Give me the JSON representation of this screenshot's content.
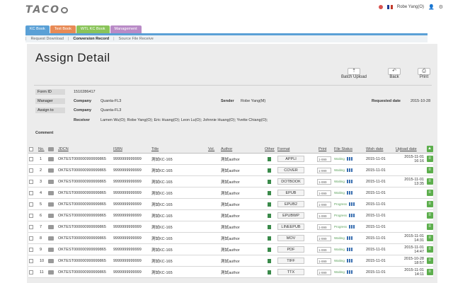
{
  "header": {
    "logo": "TACO",
    "user": "Robe Yang(O)"
  },
  "tabs": [
    "KC Book",
    "Text Book",
    "WTL KC Book",
    "Management"
  ],
  "subnav": [
    "Request Download",
    "Conversion Record",
    "Source File Receive"
  ],
  "page_title": "Assign Detail",
  "toolbar": {
    "batch_upload": "Batch Upload",
    "back": "Back",
    "print": "Print"
  },
  "form": {
    "form_id_label": "Form ID",
    "form_id": "1510286417",
    "manager_label": "Manager",
    "manager_company_label": "Company",
    "manager_company": "Quanta-FL3",
    "assign_label": "Assign to",
    "assign_company_label": "Company",
    "assign_company": "Quanta-FL3",
    "sender_label": "Sender",
    "sender": "Robe Yang(M)",
    "requested_label": "Requested date",
    "requested_date": "2015-10-28",
    "receiver_label": "Receiver",
    "receiver": "Lamen Wu(O); Robe Yang(O); Eric Huang(O); Leon Lu(O); Johnnie Huang(O); Yvette Chiang(O);",
    "comment_label": "Comment"
  },
  "columns": [
    "No.",
    "JDCN",
    "ISBN",
    "Title",
    "Vol.",
    "Author",
    "Other",
    "Format",
    "Print",
    "File Status",
    "Wish date",
    "Upload date"
  ],
  "rows": [
    {
      "no": "1",
      "jdcn": "OKTEST000000999999865",
      "isbn": "9999999999999",
      "title": "測試KC-165",
      "author": "測試author",
      "format": "APPLI",
      "print": "1-999",
      "status": "Waiting",
      "wish": "2015-11-01",
      "upload": "2015-11-01 16:16"
    },
    {
      "no": "2",
      "jdcn": "OKTEST000000999999865",
      "isbn": "9999999999999",
      "title": "測試KC-165",
      "author": "測試author",
      "format": "COVER",
      "print": "1-999",
      "status": "Waiting",
      "wish": "2015-11-01",
      "upload": ""
    },
    {
      "no": "3",
      "jdcn": "OKTEST000000999999865",
      "isbn": "9999999999999",
      "title": "測試KC-165",
      "author": "測試author",
      "format": "DOTBOOK",
      "print": "1-999",
      "status": "Waiting",
      "wish": "2015-11-01",
      "upload": "2015-11-01 13:35"
    },
    {
      "no": "4",
      "jdcn": "OKTEST000000999999865",
      "isbn": "9999999999999",
      "title": "測試KC-165",
      "author": "測試author",
      "format": "EPUB",
      "print": "1-999",
      "status": "Waiting",
      "wish": "2015-11-01",
      "upload": ""
    },
    {
      "no": "5",
      "jdcn": "OKTEST000000999999865",
      "isbn": "9999999999999",
      "title": "測試KC-165",
      "author": "測試author",
      "format": "EPUB2",
      "print": "1-999",
      "status": "Progress",
      "wish": "2015-11-01",
      "upload": ""
    },
    {
      "no": "6",
      "jdcn": "OKTEST000000999999865",
      "isbn": "9999999999999",
      "title": "測試KC-165",
      "author": "測試author",
      "format": "EPUBWP",
      "print": "1-999",
      "status": "Progress",
      "wish": "2015-11-01",
      "upload": ""
    },
    {
      "no": "7",
      "jdcn": "OKTEST000000999999865",
      "isbn": "9999999999999",
      "title": "測試KC-165",
      "author": "測試author",
      "format": "LINEEPUB",
      "print": "1-999",
      "status": "Progress",
      "wish": "2015-11-01",
      "upload": ""
    },
    {
      "no": "8",
      "jdcn": "OKTEST000000999999865",
      "isbn": "9999999999999",
      "title": "測試KC-165",
      "author": "測試author",
      "format": "MOV",
      "print": "1-999",
      "status": "Waiting",
      "wish": "2015-11-01",
      "upload": "2015-11-01 14:31"
    },
    {
      "no": "9",
      "jdcn": "OKTEST000000999999865",
      "isbn": "9999999999999",
      "title": "測試KC-165",
      "author": "測試author",
      "format": "PDF",
      "print": "1-999",
      "status": "Waiting",
      "wish": "2015-11-01",
      "upload": "2015-11-01 14:47"
    },
    {
      "no": "10",
      "jdcn": "OKTEST000000999999865",
      "isbn": "9999999999999",
      "title": "測試KC-165",
      "author": "測試author",
      "format": "TIFF",
      "print": "1-999",
      "status": "Waiting",
      "wish": "2015-11-01",
      "upload": "2015-10-28 18:57"
    },
    {
      "no": "11",
      "jdcn": "OKTEST000000999999865",
      "isbn": "9999999999999",
      "title": "測試KC-165",
      "author": "測試author",
      "format": "TTX",
      "print": "1-999",
      "status": "Waiting",
      "wish": "2015-11-01",
      "upload": "2015-11-01 14:11"
    }
  ]
}
